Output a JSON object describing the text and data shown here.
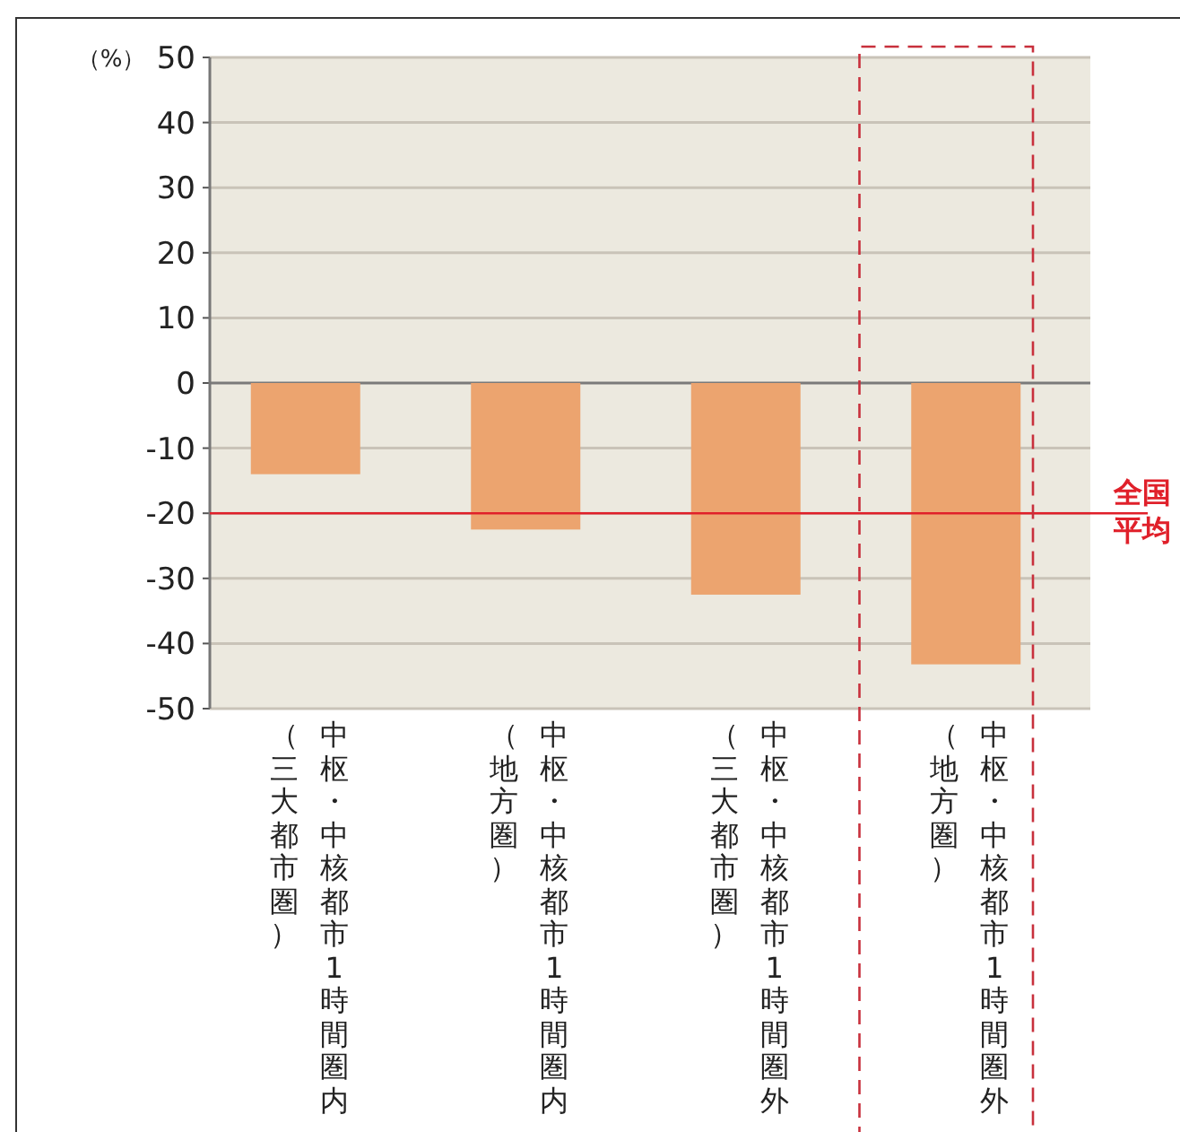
{
  "chart_data": {
    "type": "bar",
    "ylabel": "（%）",
    "categories": [
      "中枢・中核都市1時間圏内（三大都市圏）",
      "中枢・中核都市1時間圏内（地方圏）",
      "中枢・中核都市1時間圏外（三大都市圏）",
      "中枢・中核都市1時間圏外（地方圏）"
    ],
    "values": [
      -14,
      -22.5,
      -32.5,
      -43.2
    ],
    "color": "#eca46f",
    "ylim": [
      -50,
      50
    ],
    "yticks": [
      -50,
      -40,
      -30,
      -20,
      -10,
      0,
      10,
      20,
      30,
      40,
      50
    ],
    "grid": "y",
    "ref_lines": [
      {
        "axis": "y",
        "value": -20,
        "label": "全国平均",
        "color": "#e0202a"
      }
    ]
  }
}
